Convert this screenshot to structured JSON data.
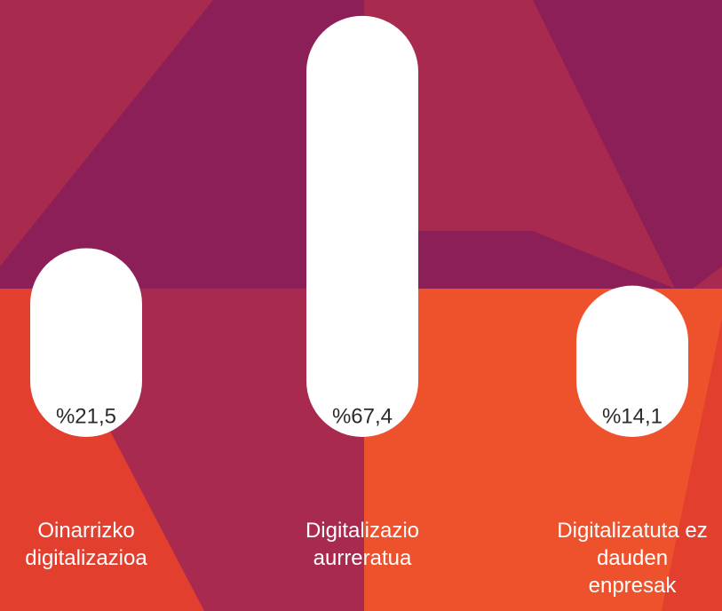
{
  "chart_data": {
    "type": "bar",
    "categories": [
      "Oinarrizko digitalizazioa",
      "Digitalizazio aurreratua",
      "Digitalizatuta ez dauden enpresak"
    ],
    "values": [
      21.5,
      67.4,
      14.1
    ],
    "value_labels": [
      "%21,5",
      "%67,4",
      "%14,1"
    ],
    "color": "#ffffff"
  }
}
